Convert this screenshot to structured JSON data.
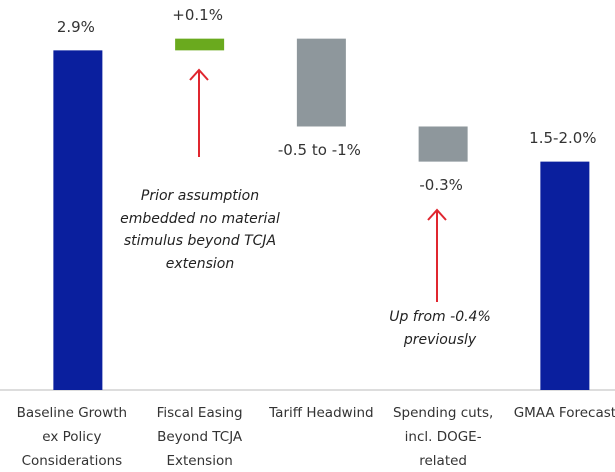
{
  "chart_data": {
    "type": "waterfall",
    "categories": [
      "Baseline Growth ex Policy Considerations",
      "Fiscal Easing Beyond TCJA Extension",
      "Tariff Headwind",
      "Spending cuts, incl. DOGE-related",
      "GMAA Forecast"
    ],
    "values": [
      2.9,
      0.1,
      -0.75,
      -0.3,
      1.95
    ],
    "value_labels": [
      "2.9%",
      "+0.1%",
      "-0.5 to -1%",
      "-0.3%",
      "1.5-2.0%"
    ],
    "is_total": [
      true,
      false,
      false,
      false,
      true
    ],
    "colors": {
      "total": "#0a1f9e",
      "increase": "#6aaa1e",
      "decrease": "#8e979c"
    },
    "ylim": [
      0,
      3.33
    ],
    "annotations": [
      {
        "text": "Prior assumption embedded no material stimulus beyond TCJA extension",
        "arrow_color": "#e0262f"
      },
      {
        "text": "Up from -0.4% previously",
        "arrow_color": "#e0262f"
      }
    ]
  }
}
